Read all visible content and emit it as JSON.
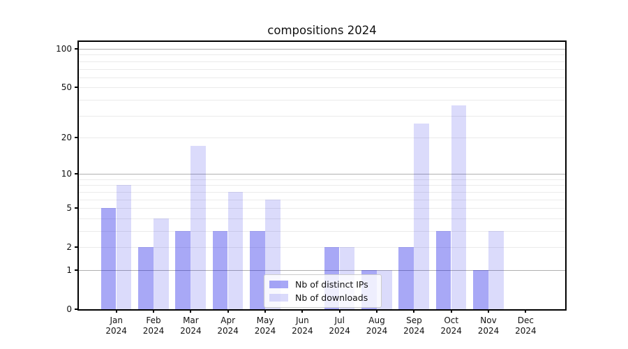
{
  "title": "compositions 2024",
  "chart_data": {
    "type": "bar",
    "title": "compositions 2024",
    "categories": [
      "Jan",
      "Feb",
      "Mar",
      "Apr",
      "May",
      "Jun",
      "Jul",
      "Aug",
      "Sep",
      "Oct",
      "Nov",
      "Dec"
    ],
    "category_year": "2024",
    "series": [
      {
        "name": "Nb of distinct IPs",
        "values": [
          5,
          2,
          3,
          3,
          3,
          0,
          2,
          1,
          2,
          3,
          1,
          0
        ],
        "color": "rgba(0,0,230,0.34)"
      },
      {
        "name": "Nb of downloads",
        "values": [
          8,
          4,
          17,
          7,
          6,
          0,
          2,
          1,
          26,
          36,
          3,
          0
        ],
        "color": "rgba(0,0,230,0.14)"
      }
    ],
    "yscale": "log-like (spacing proportional to log10(1+value))",
    "yticks": [
      0,
      1,
      2,
      5,
      10,
      20,
      50,
      100
    ],
    "ylim": [
      0,
      113
    ],
    "gridlines_major": [
      1,
      10,
      100
    ],
    "gridlines_minor": [
      2,
      3,
      4,
      5,
      6,
      7,
      8,
      9,
      20,
      30,
      40,
      50,
      60,
      70,
      80,
      90
    ],
    "grid": true,
    "legend_position": "lower center",
    "xlabel": "",
    "ylabel": ""
  },
  "legend": {
    "items": [
      {
        "label": "Nb of distinct IPs"
      },
      {
        "label": "Nb of downloads"
      }
    ]
  },
  "colors": {
    "bar_ips": "rgba(0,0,230,0.34)",
    "bar_downloads": "rgba(0,0,230,0.14)",
    "grid_major": "#b0b0b0",
    "grid_minor": "#ebebeb",
    "spine": "#000000",
    "text": "#111111"
  }
}
